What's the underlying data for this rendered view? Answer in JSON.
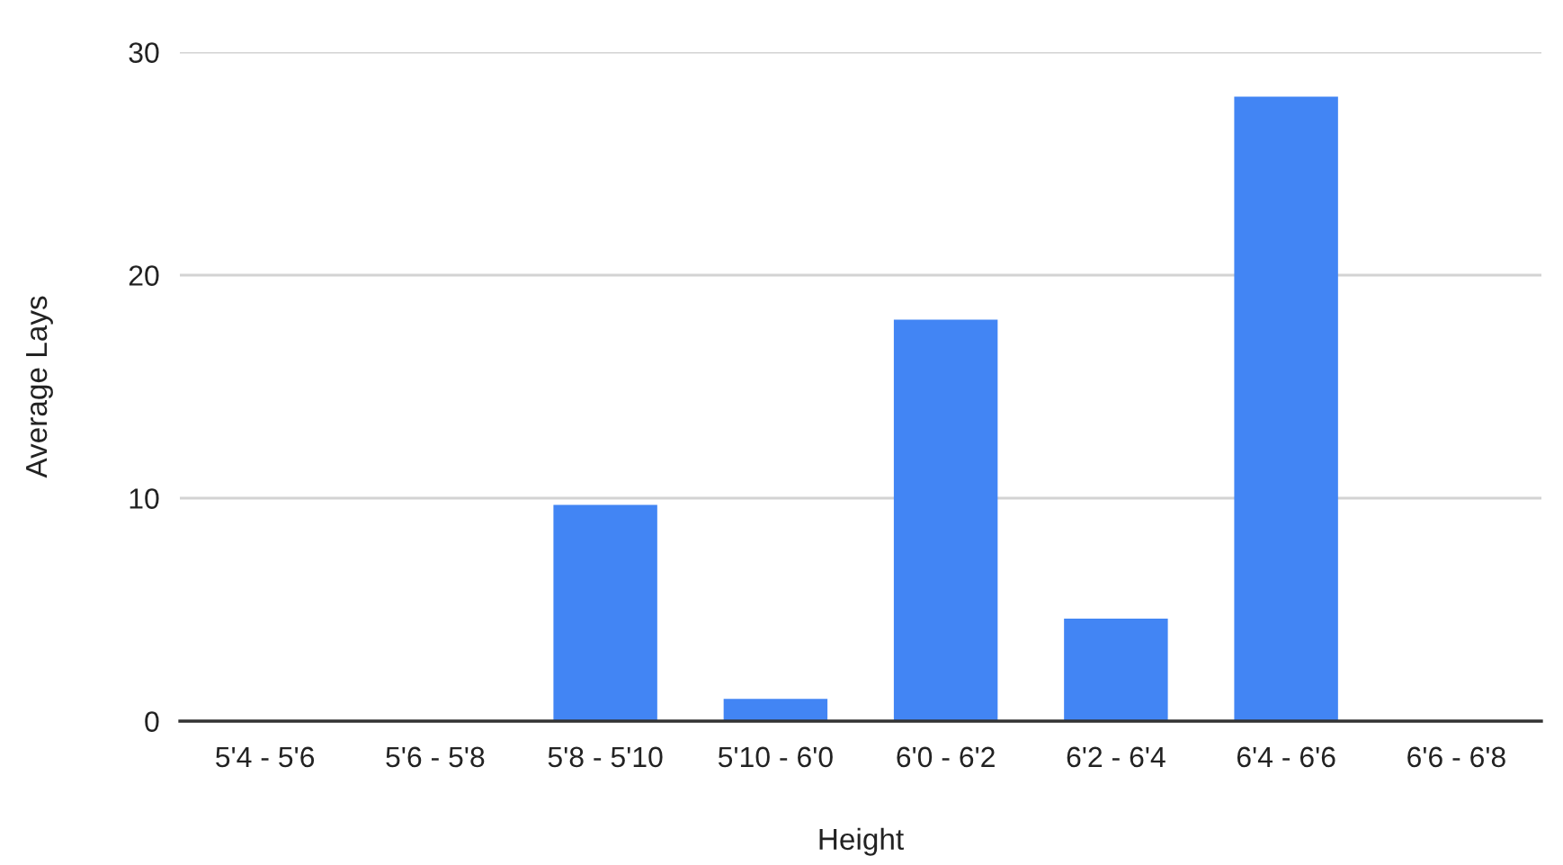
{
  "chart_data": {
    "type": "bar",
    "xlabel": "Height",
    "ylabel": "Average Lays",
    "categories": [
      "5'4 - 5'6",
      "5'6 - 5'8",
      "5'8 - 5'10",
      "5'10 - 6'0",
      "6'0 - 6'2",
      "6'2 - 6'4",
      "6'4 - 6'6",
      "6'6 - 6'8"
    ],
    "values": [
      0,
      0,
      9.7,
      1,
      18,
      4.6,
      28,
      0
    ],
    "color": "#4285f4",
    "ylim": [
      0,
      30
    ],
    "yticks": [
      0,
      10,
      20,
      30
    ],
    "grid": "y",
    "legend": false
  }
}
